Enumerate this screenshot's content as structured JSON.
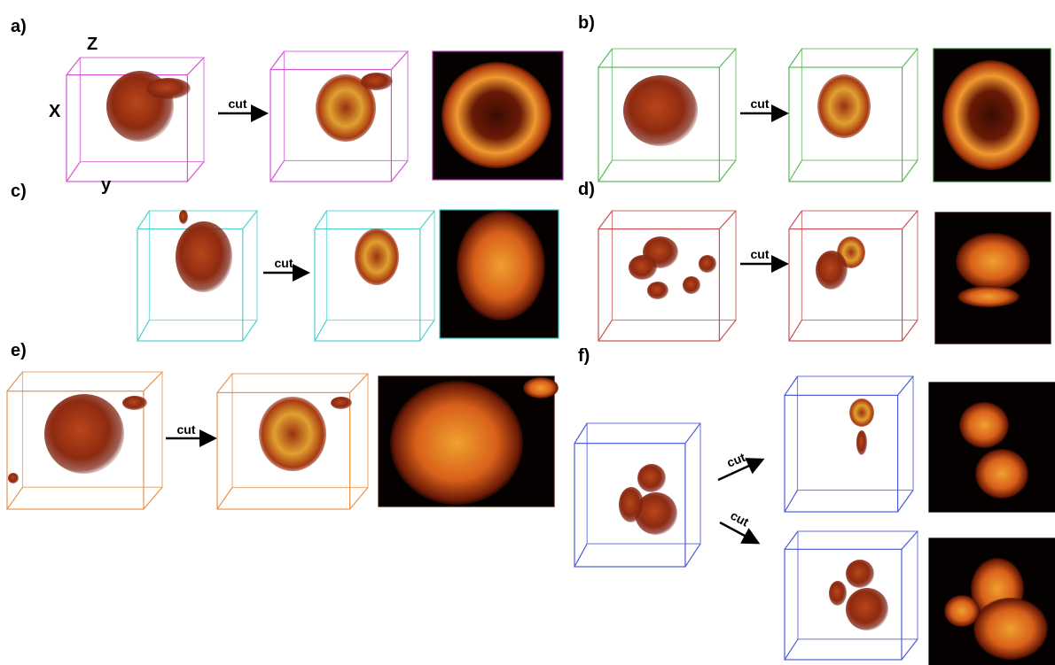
{
  "panels": [
    {
      "label": "a)",
      "axes": [
        "Z",
        "X",
        "y"
      ],
      "arrows": [
        "cut"
      ]
    },
    {
      "label": "b)",
      "arrows": [
        "cut"
      ]
    },
    {
      "label": "c)",
      "arrows": [
        "cut"
      ]
    },
    {
      "label": "d)",
      "arrows": [
        "cut"
      ]
    },
    {
      "label": "e)",
      "arrows": [
        "cut"
      ]
    },
    {
      "label": "f)",
      "arrows": [
        "cut",
        "cut"
      ]
    }
  ]
}
